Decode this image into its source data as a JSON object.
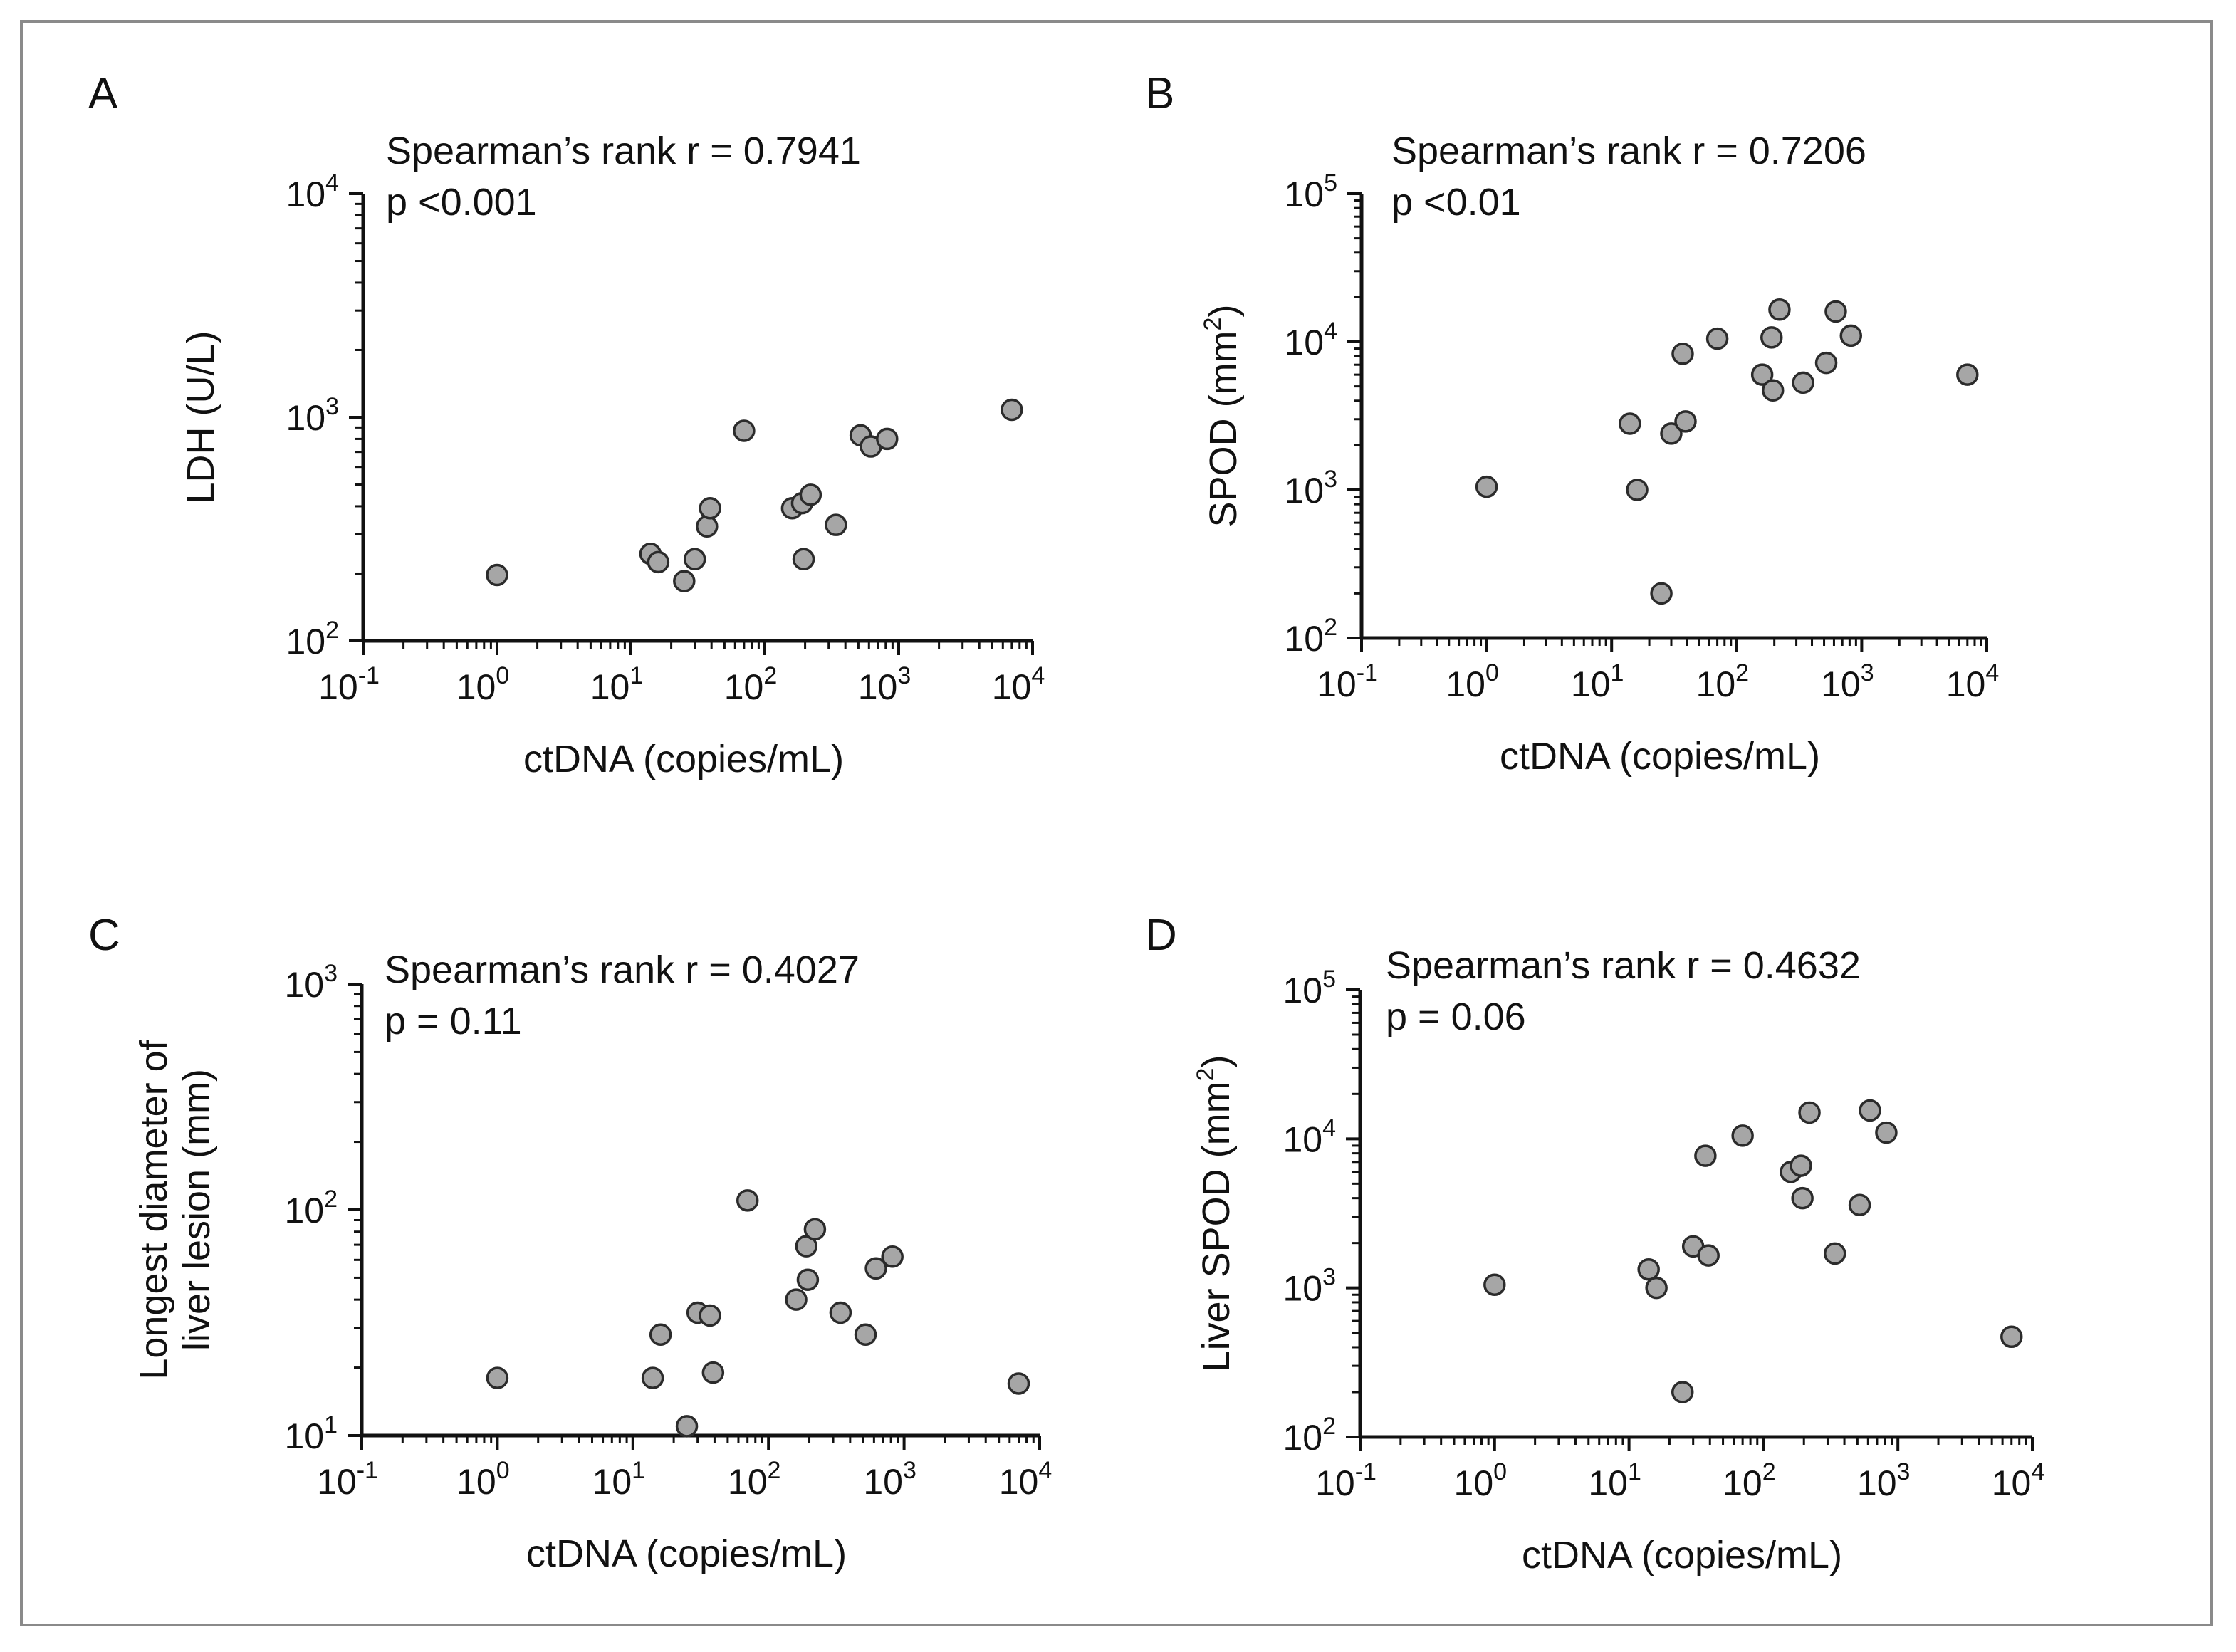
{
  "colors": {
    "marker_fill": "#a6a6a6",
    "marker_stroke": "#2b2b2b",
    "axis": "#111111",
    "frame": "#8a8a8a"
  },
  "chart_data": [
    {
      "panel": "A",
      "type": "scatter",
      "annotation": [
        "Spearman’s rank r = 0.7941",
        "p <0.001"
      ],
      "xlabel": "ctDNA (copies/mL)",
      "ylabel": [
        "LDH (U/L)"
      ],
      "ylabel_sup": "",
      "xscale": "log",
      "yscale": "log",
      "xlim": [
        0.1,
        10000
      ],
      "ylim": [
        100,
        10000
      ],
      "xticks": [
        {
          "base": "10",
          "exp": "-1"
        },
        {
          "base": "10",
          "exp": "0"
        },
        {
          "base": "10",
          "exp": "1"
        },
        {
          "base": "10",
          "exp": "2"
        },
        {
          "base": "10",
          "exp": "3"
        },
        {
          "base": "10",
          "exp": "4"
        }
      ],
      "yticks": [
        {
          "base": "10",
          "exp": "2"
        },
        {
          "base": "10",
          "exp": "3"
        },
        {
          "base": "10",
          "exp": "4"
        }
      ],
      "points": [
        {
          "x": 1,
          "y": 197
        },
        {
          "x": 14,
          "y": 245
        },
        {
          "x": 16,
          "y": 225
        },
        {
          "x": 25,
          "y": 185
        },
        {
          "x": 30,
          "y": 232
        },
        {
          "x": 37,
          "y": 325
        },
        {
          "x": 39,
          "y": 392
        },
        {
          "x": 70,
          "y": 870
        },
        {
          "x": 160,
          "y": 392
        },
        {
          "x": 190,
          "y": 413
        },
        {
          "x": 195,
          "y": 232
        },
        {
          "x": 220,
          "y": 450
        },
        {
          "x": 340,
          "y": 330
        },
        {
          "x": 520,
          "y": 830
        },
        {
          "x": 620,
          "y": 740
        },
        {
          "x": 820,
          "y": 800
        },
        {
          "x": 7000,
          "y": 1080
        }
      ]
    },
    {
      "panel": "B",
      "type": "scatter",
      "annotation": [
        "Spearman’s rank r = 0.7206",
        "p <0.01"
      ],
      "xlabel": "ctDNA (copies/mL)",
      "ylabel": [
        "SPOD (mm"
      ],
      "ylabel_sup": "2",
      "ylabel_tail": ")",
      "xscale": "log",
      "yscale": "log",
      "xlim": [
        0.1,
        10000
      ],
      "ylim": [
        100,
        100000
      ],
      "xticks": [
        {
          "base": "10",
          "exp": "-1"
        },
        {
          "base": "10",
          "exp": "0"
        },
        {
          "base": "10",
          "exp": "1"
        },
        {
          "base": "10",
          "exp": "2"
        },
        {
          "base": "10",
          "exp": "3"
        },
        {
          "base": "10",
          "exp": "4"
        }
      ],
      "yticks": [
        {
          "base": "10",
          "exp": "2"
        },
        {
          "base": "10",
          "exp": "3"
        },
        {
          "base": "10",
          "exp": "4"
        },
        {
          "base": "10",
          "exp": "5"
        }
      ],
      "points": [
        {
          "x": 1,
          "y": 1050
        },
        {
          "x": 14,
          "y": 2800
        },
        {
          "x": 16,
          "y": 1000
        },
        {
          "x": 25,
          "y": 200
        },
        {
          "x": 30,
          "y": 2400
        },
        {
          "x": 37,
          "y": 8300
        },
        {
          "x": 39,
          "y": 2900
        },
        {
          "x": 70,
          "y": 10500
        },
        {
          "x": 160,
          "y": 6000
        },
        {
          "x": 190,
          "y": 10700
        },
        {
          "x": 195,
          "y": 4700
        },
        {
          "x": 220,
          "y": 16500
        },
        {
          "x": 340,
          "y": 5300
        },
        {
          "x": 520,
          "y": 7200
        },
        {
          "x": 620,
          "y": 16000
        },
        {
          "x": 820,
          "y": 11000
        },
        {
          "x": 7000,
          "y": 6000
        }
      ]
    },
    {
      "panel": "C",
      "type": "scatter",
      "annotation": [
        "Spearman’s rank r = 0.4027",
        "p = 0.11"
      ],
      "xlabel": "ctDNA (copies/mL)",
      "ylabel": [
        "Longest diameter of",
        "liver lesion (mm)"
      ],
      "ylabel_sup": "",
      "xscale": "log",
      "yscale": "log",
      "xlim": [
        0.1,
        10000
      ],
      "ylim": [
        10,
        1000
      ],
      "xticks": [
        {
          "base": "10",
          "exp": "-1"
        },
        {
          "base": "10",
          "exp": "0"
        },
        {
          "base": "10",
          "exp": "1"
        },
        {
          "base": "10",
          "exp": "2"
        },
        {
          "base": "10",
          "exp": "3"
        },
        {
          "base": "10",
          "exp": "4"
        }
      ],
      "yticks": [
        {
          "base": "10",
          "exp": "1"
        },
        {
          "base": "10",
          "exp": "2"
        },
        {
          "base": "10",
          "exp": "3"
        }
      ],
      "points": [
        {
          "x": 1,
          "y": 18
        },
        {
          "x": 14,
          "y": 18
        },
        {
          "x": 16,
          "y": 28
        },
        {
          "x": 25,
          "y": 11
        },
        {
          "x": 30,
          "y": 35
        },
        {
          "x": 37,
          "y": 34
        },
        {
          "x": 39,
          "y": 19
        },
        {
          "x": 70,
          "y": 110
        },
        {
          "x": 160,
          "y": 40
        },
        {
          "x": 190,
          "y": 69
        },
        {
          "x": 195,
          "y": 49
        },
        {
          "x": 220,
          "y": 82
        },
        {
          "x": 340,
          "y": 35
        },
        {
          "x": 520,
          "y": 28
        },
        {
          "x": 620,
          "y": 55
        },
        {
          "x": 820,
          "y": 62
        },
        {
          "x": 7000,
          "y": 17
        }
      ]
    },
    {
      "panel": "D",
      "type": "scatter",
      "annotation": [
        "Spearman’s rank r = 0.4632",
        "p = 0.06"
      ],
      "xlabel": "ctDNA (copies/mL)",
      "ylabel": [
        "Liver SPOD (mm"
      ],
      "ylabel_sup": "2",
      "ylabel_tail": ")",
      "xscale": "log",
      "yscale": "log",
      "xlim": [
        0.1,
        10000
      ],
      "ylim": [
        100,
        100000
      ],
      "xticks": [
        {
          "base": "10",
          "exp": "-1"
        },
        {
          "base": "10",
          "exp": "0"
        },
        {
          "base": "10",
          "exp": "1"
        },
        {
          "base": "10",
          "exp": "2"
        },
        {
          "base": "10",
          "exp": "3"
        },
        {
          "base": "10",
          "exp": "4"
        }
      ],
      "yticks": [
        {
          "base": "10",
          "exp": "2"
        },
        {
          "base": "10",
          "exp": "3"
        },
        {
          "base": "10",
          "exp": "4"
        },
        {
          "base": "10",
          "exp": "5"
        }
      ],
      "points": [
        {
          "x": 1,
          "y": 1050
        },
        {
          "x": 14,
          "y": 1330
        },
        {
          "x": 16,
          "y": 1000
        },
        {
          "x": 25,
          "y": 200
        },
        {
          "x": 30,
          "y": 1900
        },
        {
          "x": 37,
          "y": 7700
        },
        {
          "x": 39,
          "y": 1650
        },
        {
          "x": 70,
          "y": 10500
        },
        {
          "x": 160,
          "y": 6000
        },
        {
          "x": 190,
          "y": 6600
        },
        {
          "x": 195,
          "y": 4000
        },
        {
          "x": 220,
          "y": 15000
        },
        {
          "x": 340,
          "y": 1700
        },
        {
          "x": 520,
          "y": 3600
        },
        {
          "x": 620,
          "y": 15500
        },
        {
          "x": 820,
          "y": 11000
        },
        {
          "x": 7000,
          "y": 470
        }
      ]
    }
  ]
}
